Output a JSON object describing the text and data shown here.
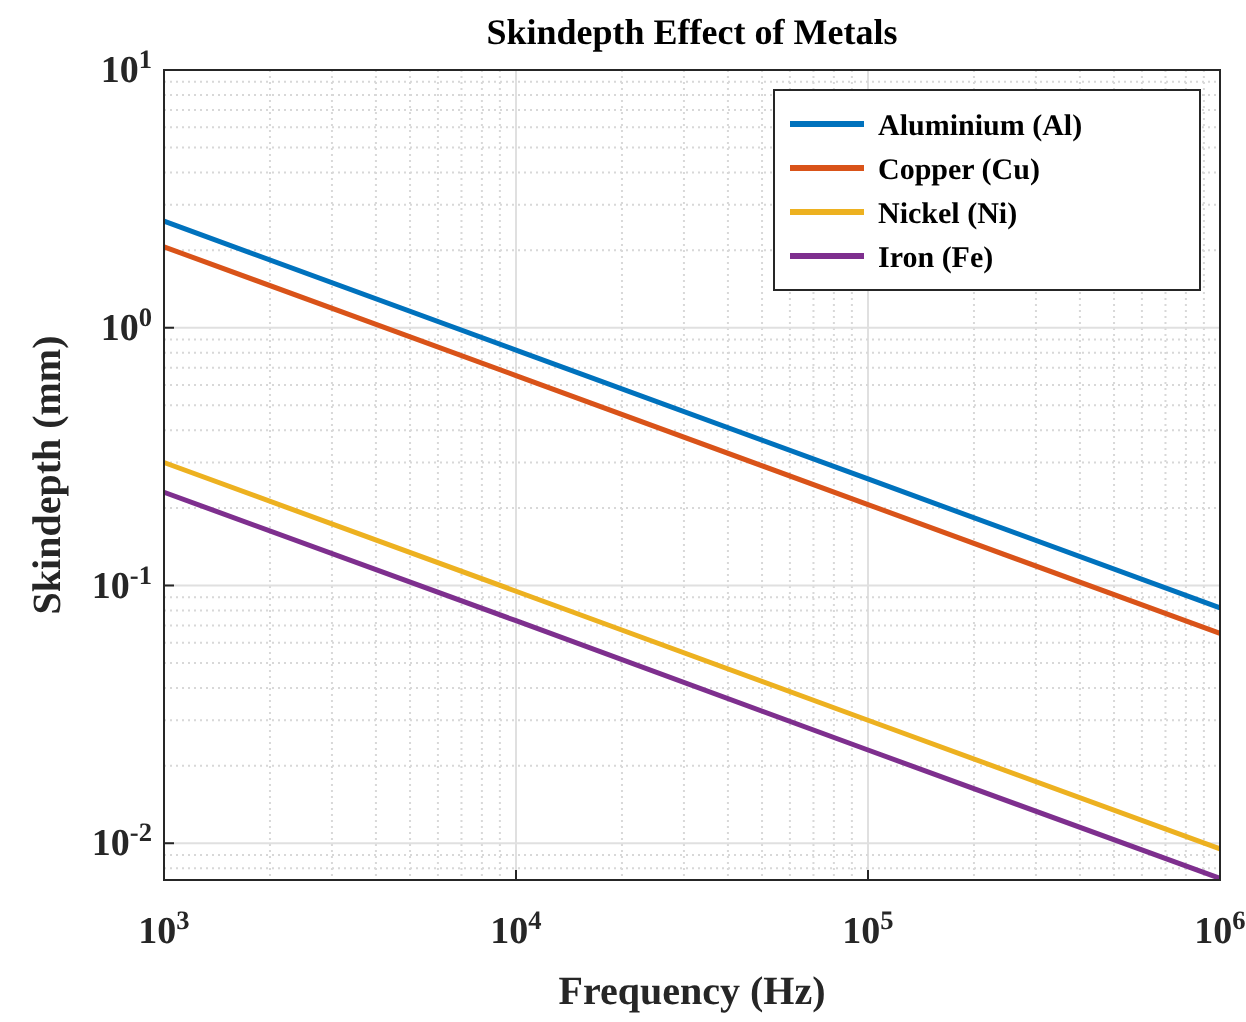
{
  "chart_data": {
    "type": "line",
    "title": "Skindepth Effect of Metals",
    "xlabel": "Frequency (Hz)",
    "ylabel": "Skindepth (mm)",
    "x": [
      1000,
      10000,
      100000,
      1000000
    ],
    "series": [
      {
        "name": "Aluminium (Al)",
        "color": "#0072bd",
        "values": [
          2.59,
          0.819,
          0.259,
          0.0819
        ]
      },
      {
        "name": "Copper (Cu)",
        "color": "#d95319",
        "values": [
          2.06,
          0.652,
          0.206,
          0.0652
        ]
      },
      {
        "name": "Nickel (Ni)",
        "color": "#edb120",
        "values": [
          0.3,
          0.095,
          0.03,
          0.0095
        ]
      },
      {
        "name": "Iron (Fe)",
        "color": "#7e2f8e",
        "values": [
          0.23,
          0.073,
          0.023,
          0.0073
        ]
      }
    ],
    "log": "xy",
    "xlim": [
      1000,
      1000000
    ],
    "ylim": [
      0.0072,
      10
    ],
    "xticks": [
      {
        "value": 1000,
        "label": "10$^{3}$"
      },
      {
        "value": 10000,
        "label": "10$^{4}$"
      },
      {
        "value": 100000,
        "label": "10$^{5}$"
      },
      {
        "value": 1000000,
        "label": "10$^{6}$"
      }
    ],
    "yticks": [
      {
        "value": 0.01,
        "label": "10$^{-2}$"
      },
      {
        "value": 0.1,
        "label": "10$^{-1}$"
      },
      {
        "value": 1,
        "label": "10$^{0}$"
      },
      {
        "value": 10,
        "label": "10$^{1}$"
      }
    ],
    "grid": true,
    "legend": "top right",
    "marker": "none",
    "line_style": "solid"
  }
}
